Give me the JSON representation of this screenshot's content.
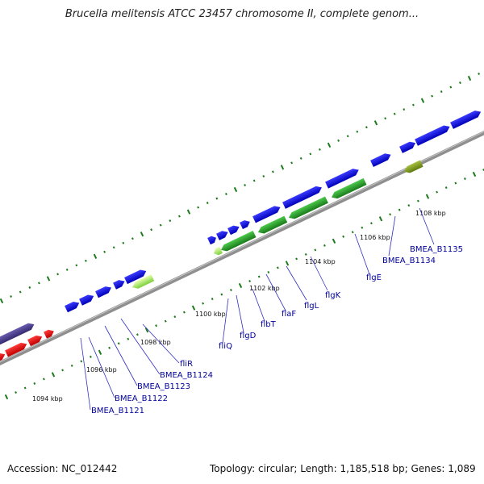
{
  "title": "Brucella melitensis ATCC 23457 chromosome II, complete genom...",
  "footer": {
    "accession": "Accession: NC_012442",
    "summary": "Topology: circular; Length: 1,185,518 bp; Genes: 1,089"
  },
  "colors": {
    "backbone": "#8a8a8a",
    "tick": "#1d7a1d",
    "cds_forward": "#0000e0",
    "cds_reverse": "#ee0000",
    "rna": "#4b3c8c",
    "highlight_dark": "#1f8f1f",
    "highlight_light": "#a4e85c",
    "olive": "#7f9a1f",
    "label": "#0000a0"
  },
  "kbp_labels": [
    "1094 kbp",
    "1096 kbp",
    "1098 kbp",
    "1100 kbp",
    "1102 kbp",
    "1104 kbp",
    "1106 kbp",
    "1108 kbp"
  ],
  "gene_labels": [
    "BMEA_B1121",
    "BMEA_B1122",
    "BMEA_B1123",
    "BMEA_B1124",
    "fliR",
    "fliQ",
    "flgD",
    "flbT",
    "flaF",
    "flgL",
    "flgK",
    "flgE",
    "BMEA_B1134",
    "BMEA_B1135"
  ]
}
